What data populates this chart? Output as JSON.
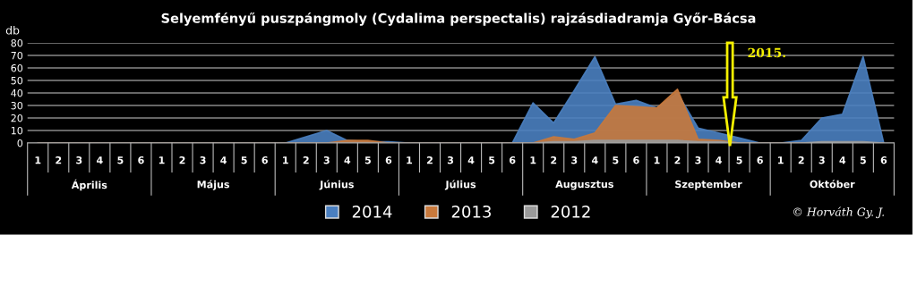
{
  "chart_data": {
    "type": "area",
    "title": "Selyemfényű puszpángmoly (Cydalima perspectalis) rajzásdiadramja Győr-Bácsa",
    "ylabel": "db",
    "categories": [
      "1",
      "2",
      "3",
      "4",
      "5",
      "6",
      "1",
      "2",
      "3",
      "4",
      "5",
      "6",
      "1",
      "2",
      "3",
      "4",
      "5",
      "6",
      "1",
      "2",
      "3",
      "4",
      "5",
      "6",
      "1",
      "2",
      "3",
      "4",
      "5",
      "6",
      "1",
      "2",
      "3",
      "4",
      "5",
      "6",
      "1",
      "2",
      "3",
      "4",
      "5",
      "6"
    ],
    "series": [
      {
        "name": "2014",
        "color": "#4a7fc0",
        "values": [
          0,
          0,
          0,
          0,
          0,
          0,
          0,
          0,
          0,
          0,
          0,
          0,
          0,
          5,
          10,
          2,
          1,
          1,
          0,
          0,
          0,
          0,
          0,
          0,
          32,
          16,
          42,
          69,
          31,
          34,
          28,
          40,
          12,
          8,
          4,
          0,
          0,
          2,
          20,
          23,
          69,
          0
        ]
      },
      {
        "name": "2013",
        "color": "#c8793c",
        "values": [
          0,
          0,
          0,
          0,
          0,
          0,
          0,
          0,
          0,
          0,
          0,
          0,
          0,
          0,
          0,
          2,
          2,
          0,
          0,
          0,
          0,
          0,
          0,
          0,
          0,
          5,
          3,
          8,
          30,
          29,
          28,
          43,
          3,
          2,
          0,
          0,
          0,
          0,
          0,
          0,
          0,
          0
        ]
      },
      {
        "name": "2012",
        "color": "#9a9a9a",
        "values": [
          0,
          0,
          0,
          0,
          0,
          0,
          0,
          0,
          0,
          0,
          0,
          0,
          0,
          0,
          0,
          0,
          0,
          0,
          0,
          0,
          0,
          0,
          0,
          0,
          0,
          1,
          1,
          2,
          2,
          2,
          2,
          2,
          1,
          1,
          0,
          0,
          0,
          0,
          1,
          1,
          1,
          0
        ]
      }
    ],
    "ylim": [
      0,
      80
    ],
    "yticks": [
      0,
      10,
      20,
      30,
      40,
      50,
      60,
      70,
      80
    ],
    "grid": "y",
    "legend": "bottom",
    "annotations": [
      "Április",
      "Május",
      "Június",
      "Július",
      "Augusztus",
      "Szeptember",
      "Október",
      "2015.",
      "© Horváth Gy. J."
    ]
  }
}
